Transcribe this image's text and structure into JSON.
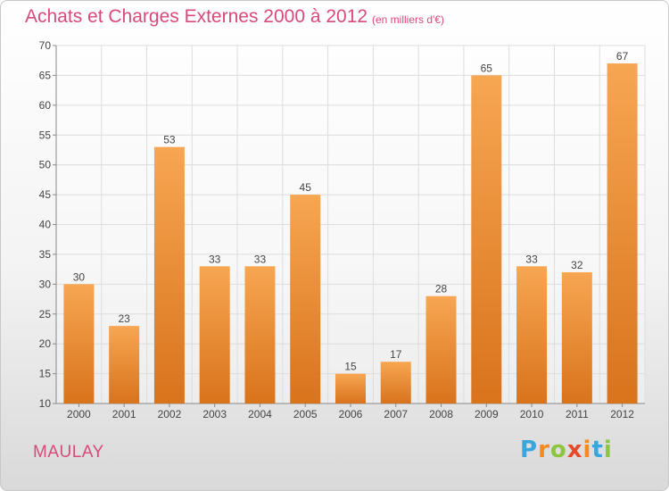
{
  "header": {
    "title": "Achats et Charges Externes 2000 à 2012",
    "unit": "(en milliers d'€)"
  },
  "footer": {
    "town": "MAULAY",
    "logo_text": "Proxiti",
    "logo_letters": [
      "P",
      "r",
      "o",
      "x",
      "i",
      "t",
      "i"
    ],
    "logo_colors": [
      "#3aa6de",
      "#f28c1e",
      "#8cc63f",
      "#e8492b",
      "#f28c1e",
      "#3aa6de",
      "#8cc63f"
    ]
  },
  "chart_data": {
    "type": "bar",
    "title": "Achats et Charges Externes 2000 à 2012",
    "xlabel": "",
    "ylabel": "",
    "categories": [
      "2000",
      "2001",
      "2002",
      "2003",
      "2004",
      "2005",
      "2006",
      "2007",
      "2008",
      "2009",
      "2010",
      "2011",
      "2012"
    ],
    "values": [
      30,
      23,
      53,
      33,
      33,
      45,
      15,
      17,
      28,
      65,
      33,
      32,
      67
    ],
    "ylim": [
      10,
      70
    ],
    "yticks": [
      10,
      15,
      20,
      25,
      30,
      35,
      40,
      45,
      50,
      55,
      60,
      65,
      70
    ],
    "grid": true,
    "bar_color_top": "#f7a652",
    "bar_color_bottom": "#d9731c",
    "grid_color": "#dddddd"
  }
}
